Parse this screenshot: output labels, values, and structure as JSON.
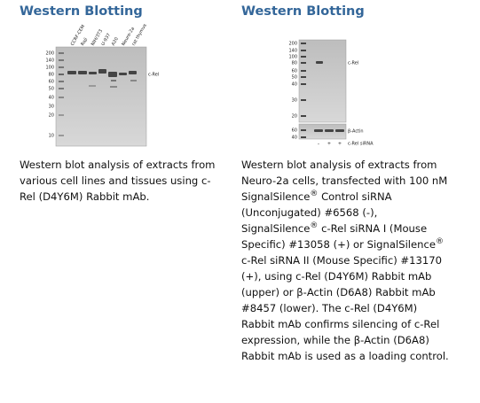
{
  "columns": [
    {
      "heading": "Western Blotting",
      "blot": {
        "markers": [
          "200",
          "140",
          "100",
          "80",
          "60",
          "50",
          "40",
          "30",
          "20",
          "10"
        ],
        "lanes": [
          "CCRF-CEM",
          "Raji",
          "NIH/3T3",
          "U-937",
          "A20",
          "Neuro-2a",
          "rat thymus"
        ],
        "band_label": "c-Rel"
      },
      "caption": [
        "Western blot analysis of extracts from various cell lines and tissues using c-Rel (D4Y6M) Rabbit mAb."
      ]
    },
    {
      "heading": "Western Blotting",
      "blot": {
        "markers": [
          "200",
          "140",
          "100",
          "80",
          "60",
          "50",
          "40",
          "30",
          "20"
        ],
        "lower_markers": [
          "60",
          "40"
        ],
        "band_label": "c-Rel",
        "lower_band_label": "β-Actin",
        "treatment": "c-Rel siRNA",
        "treatment_signs": [
          "–",
          "+",
          "+"
        ]
      },
      "caption": [
        "Western blot analysis of extracts from Neuro-2a cells, transfected with 100 nM SignalSilence",
        "®",
        " Control siRNA (Unconjugated) #6568 (-), SignalSilence",
        "®",
        " c-Rel siRNA I (Mouse Specific) #13058 (+) or SignalSilence",
        "®",
        " c-Rel siRNA II (Mouse Specific) #13170 (+), using c-Rel (D4Y6M) Rabbit mAb (upper) or β-Actin (D6A8) Rabbit mAb #8457 (lower). The c-Rel (D4Y6M) Rabbit mAb confirms silencing of c-Rel expression, while the β-Actin (D6A8) Rabbit mAb is used as a loading control."
      ]
    }
  ]
}
